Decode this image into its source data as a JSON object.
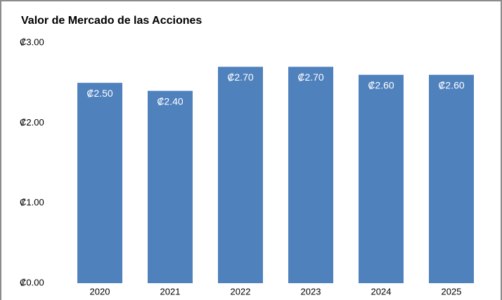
{
  "chart_data": {
    "type": "bar",
    "title": "Valor de Mercado de las Acciones",
    "categories": [
      "2020",
      "2021",
      "2022",
      "2023",
      "2024",
      "2025"
    ],
    "values": [
      2.5,
      2.4,
      2.7,
      2.7,
      2.6,
      2.6
    ],
    "value_labels": [
      "₡2.50",
      "₡2.40",
      "₡2.70",
      "₡2.70",
      "₡2.60",
      "₡2.60"
    ],
    "color": "#4f81bd",
    "ylim": [
      0,
      3
    ],
    "yticks": [
      {
        "value": 0,
        "label": "₡0.00"
      },
      {
        "value": 1,
        "label": "₡1.00"
      },
      {
        "value": 2,
        "label": "₡2.00"
      },
      {
        "value": 3,
        "label": "₡3.00"
      }
    ],
    "grid": false
  }
}
